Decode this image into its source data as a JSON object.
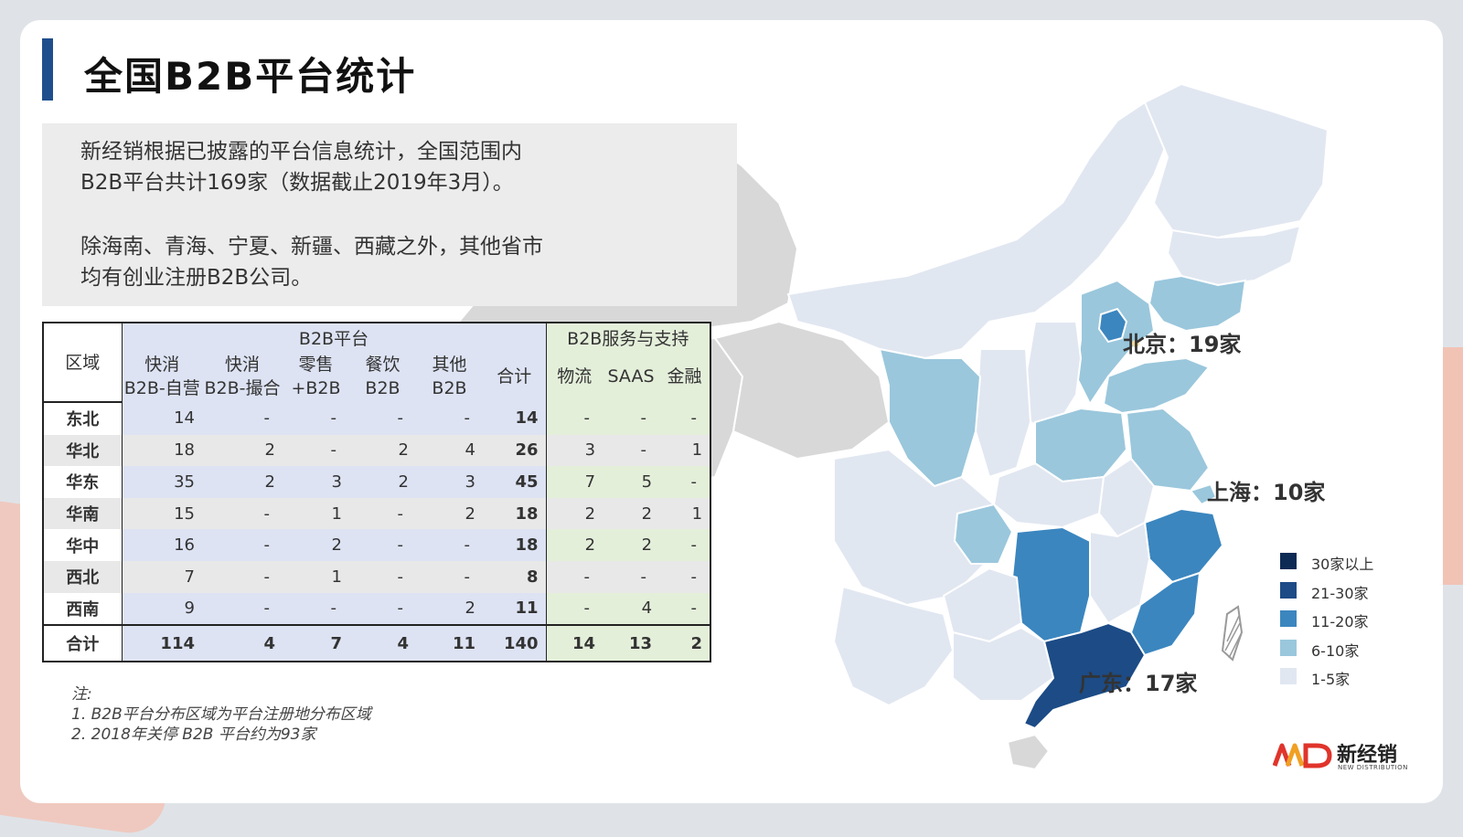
{
  "title": "全国B2B平台统计",
  "intro": {
    "paragraph1": "新经销根据已披露的平台信息统计，全国范围内B2B平台共计169家（数据截止2019年3月）。",
    "paragraph2": "除海南、青海、宁夏、新疆、西藏之外，其他省市均有创业注册B2B公司。"
  },
  "table": {
    "region_header": "区域",
    "group_b2b": "B2B平台",
    "group_service": "B2B服务与支持",
    "columns": [
      {
        "line1": "快消",
        "line2": "B2B-自营"
      },
      {
        "line1": "快消",
        "line2": "B2B-撮合"
      },
      {
        "line1": "零售",
        "line2": "+B2B"
      },
      {
        "line1": "餐饮",
        "line2": "B2B"
      },
      {
        "line1": "其他",
        "line2": "B2B"
      },
      {
        "line1": "",
        "line2": "合计"
      },
      {
        "line1": "",
        "line2": "物流"
      },
      {
        "line1": "",
        "line2": "SAAS"
      },
      {
        "line1": "",
        "line2": "金融"
      }
    ],
    "rows": [
      {
        "region": "东北",
        "values": [
          "14",
          "-",
          "-",
          "-",
          "-",
          "14",
          "-",
          "-",
          "-"
        ]
      },
      {
        "region": "华北",
        "values": [
          "18",
          "2",
          "-",
          "2",
          "4",
          "26",
          "3",
          "-",
          "1"
        ]
      },
      {
        "region": "华东",
        "values": [
          "35",
          "2",
          "3",
          "2",
          "3",
          "45",
          "7",
          "5",
          "-"
        ]
      },
      {
        "region": "华南",
        "values": [
          "15",
          "-",
          "1",
          "-",
          "2",
          "18",
          "2",
          "2",
          "1"
        ]
      },
      {
        "region": "华中",
        "values": [
          "16",
          "-",
          "2",
          "-",
          "-",
          "18",
          "2",
          "2",
          "-"
        ]
      },
      {
        "region": "西北",
        "values": [
          "7",
          "-",
          "1",
          "-",
          "-",
          "8",
          "-",
          "-",
          "-"
        ]
      },
      {
        "region": "西南",
        "values": [
          "9",
          "-",
          "-",
          "-",
          "2",
          "11",
          "-",
          "4",
          "-"
        ]
      }
    ],
    "total": {
      "region": "合计",
      "values": [
        "114",
        "4",
        "7",
        "4",
        "11",
        "140",
        "14",
        "13",
        "2"
      ]
    }
  },
  "notes": {
    "heading": "注:",
    "items": [
      "1.   B2B平台分布区域为平台注册地分布区域",
      "2.   2018年关停 B2B 平台约为93家"
    ]
  },
  "map": {
    "callouts": {
      "beijing": "北京：19家",
      "shanghai": "上海：10家",
      "guangdong": "广东：17家"
    },
    "colors": {
      "level_30plus": "#0d2a55",
      "level_21_30": "#1c4b86",
      "level_11_20": "#3b86bf",
      "level_6_10": "#9ac7dc",
      "level_1_5": "#e1e7f1",
      "no_data": "#d8d8d8"
    }
  },
  "legend": [
    {
      "label": "30家以上",
      "color": "#0d2a55"
    },
    {
      "label": "21-30家",
      "color": "#1c4b86"
    },
    {
      "label": "11-20家",
      "color": "#3b86bf"
    },
    {
      "label": "6-10家",
      "color": "#9ac7dc"
    },
    {
      "label": "1-5家",
      "color": "#e1e7f1"
    }
  ],
  "logo": {
    "name": "新经销",
    "subtitle": "NEW DISTRIBUTION"
  }
}
